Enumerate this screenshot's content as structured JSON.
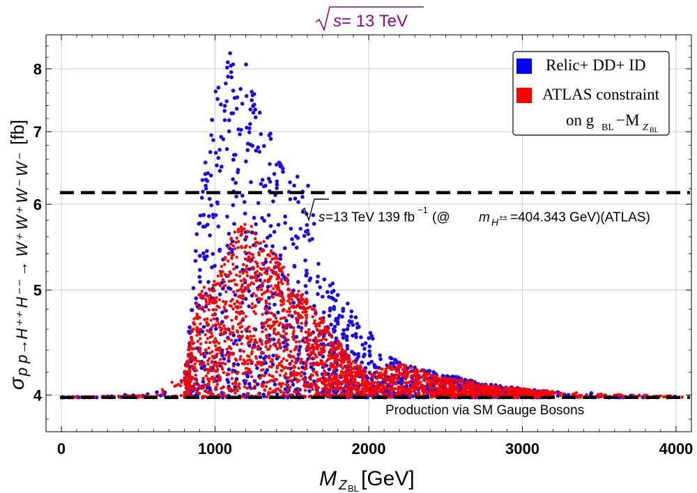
{
  "chart_data": {
    "type": "scatter",
    "title": "s = 13 TeV",
    "title_color": "#8b008b",
    "xlabel": "M_ZBL [GeV]",
    "xlabel_main": "M",
    "xlabel_sub": "Z",
    "xlabel_subsub": "BL",
    "xlabel_unit": "[GeV]",
    "ylabel": "σ_pp→H⁺⁺H⁻⁻→W⁺W⁺W⁻W⁻ [fb]",
    "ylabel_sigma": "σ",
    "ylabel_sub": "p p→H⁺⁺ H⁻⁻ → W⁺ W⁺ W⁻ W⁻",
    "ylabel_unit": "[fb]",
    "xlim": [
      -100,
      4100
    ],
    "ylim": [
      3.7,
      8.6
    ],
    "yscale": "log",
    "x_ticks": [
      0,
      1000,
      2000,
      3000,
      4000
    ],
    "x_tick_labels": [
      "0",
      "1000",
      "2000",
      "3000",
      "4000"
    ],
    "y_ticks": [
      4,
      5,
      6,
      7,
      8
    ],
    "y_tick_labels": [
      "4",
      "5",
      "6",
      "7",
      "8"
    ],
    "grid": true,
    "series": [
      {
        "name": "Relic+ DD+ ID",
        "color": "#0000ff",
        "marker": "circle",
        "envelope": {
          "x": [
            0,
            300,
            600,
            750,
            800,
            850,
            900,
            950,
            1000,
            1050,
            1100,
            1150,
            1200,
            1250,
            1300,
            1350,
            1400,
            1500,
            1600,
            1700,
            1800,
            1900,
            2000,
            2100,
            2200,
            2300,
            2500,
            2700,
            2900,
            3100,
            3400,
            3700,
            4050
          ],
          "y": [
            3.98,
            3.99,
            4.02,
            4.05,
            4.2,
            4.9,
            6.2,
            6.8,
            7.6,
            8.3,
            8.3,
            7.9,
            8.1,
            7.8,
            7.2,
            7.1,
            6.7,
            6.4,
            6.3,
            5.2,
            5.0,
            4.8,
            4.6,
            4.4,
            4.3,
            4.25,
            4.18,
            4.12,
            4.07,
            4.04,
            4.02,
            4.0,
            3.99
          ]
        }
      },
      {
        "name": "ATLAS constraint on g_BL−M_ZBL",
        "color": "#ff0000",
        "marker": "circle",
        "envelope": {
          "x": [
            0,
            600,
            800,
            850,
            900,
            1000,
            1100,
            1200,
            1300,
            1400,
            1500,
            1600,
            1700,
            1800,
            1900,
            2000,
            2200,
            2500,
            2800,
            3100,
            3500,
            4050
          ],
          "y": [
            3.98,
            4.0,
            4.2,
            4.6,
            5.0,
            5.1,
            5.6,
            5.8,
            5.6,
            5.4,
            5.1,
            4.9,
            4.7,
            4.5,
            4.3,
            4.2,
            4.28,
            4.15,
            4.08,
            4.04,
            4.01,
            3.99
          ]
        }
      }
    ],
    "reference_lines": [
      {
        "y": 6.15,
        "style": "dashed",
        "color": "#000000",
        "label": "√s =13 TeV 139 fb⁻¹(@ m_H±± =404.343 GeV)(ATLAS)"
      },
      {
        "y": 3.98,
        "style": "dashed",
        "color": "#000000",
        "label": "Production via SM Gauge Bosons"
      }
    ],
    "legend": {
      "placement": "top-right",
      "entries": [
        {
          "line1": "Relic+ DD+ ID",
          "color": "#0000ff"
        },
        {
          "line1": "ATLAS constraint",
          "line2_prefix": "on g",
          "line2_sub": "BL",
          "line2_mid": "−M",
          "line2_sub2": "Z",
          "line2_subsub": "BL",
          "color": "#ff0000"
        }
      ]
    },
    "annotations": {
      "atlas_line": {
        "sqrt": "√",
        "s_text": "s",
        "pre": " =13 TeV 139 fb",
        "sup": "−1",
        "mid": "(@ ",
        "m": "m",
        "sub": "H",
        "subsup": "±±",
        "post": " =404.343 GeV)(ATLAS)"
      },
      "sm_line": "Production via SM Gauge Bosons"
    },
    "title_parts": {
      "sqrt": "√",
      "s": "s",
      "rest": " = 13 TeV"
    }
  }
}
